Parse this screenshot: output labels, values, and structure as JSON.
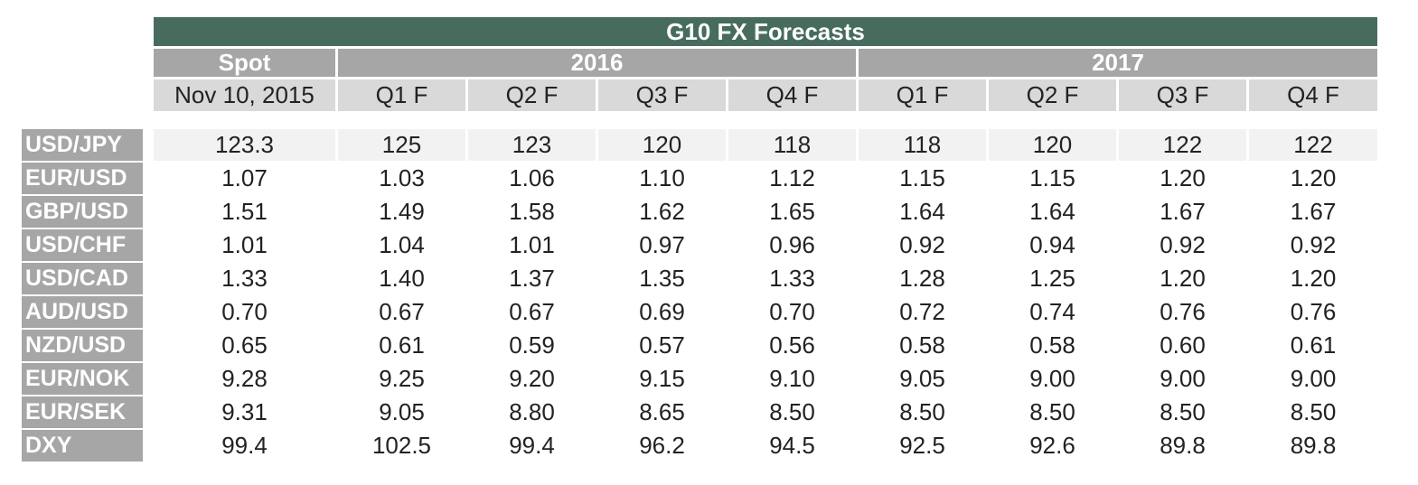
{
  "table": {
    "title": "G10 FX Forecasts",
    "spot_header": "Spot",
    "spot_date": "Nov 10, 2015",
    "year_headers": [
      "2016",
      "2017"
    ],
    "quarter_labels": [
      "Q1 F",
      "Q2 F",
      "Q3 F",
      "Q4 F",
      "Q1 F",
      "Q2 F",
      "Q3 F",
      "Q4 F"
    ],
    "rows": [
      {
        "pair": "USD/JPY",
        "values": [
          "123.3",
          "125",
          "123",
          "120",
          "118",
          "118",
          "120",
          "122",
          "122"
        ]
      },
      {
        "pair": "EUR/USD",
        "values": [
          "1.07",
          "1.03",
          "1.06",
          "1.10",
          "1.12",
          "1.15",
          "1.15",
          "1.20",
          "1.20"
        ]
      },
      {
        "pair": "GBP/USD",
        "values": [
          "1.51",
          "1.49",
          "1.58",
          "1.62",
          "1.65",
          "1.64",
          "1.64",
          "1.67",
          "1.67"
        ]
      },
      {
        "pair": "USD/CHF",
        "values": [
          "1.01",
          "1.04",
          "1.01",
          "0.97",
          "0.96",
          "0.92",
          "0.94",
          "0.92",
          "0.92"
        ]
      },
      {
        "pair": "USD/CAD",
        "values": [
          "1.33",
          "1.40",
          "1.37",
          "1.35",
          "1.33",
          "1.28",
          "1.25",
          "1.20",
          "1.20"
        ]
      },
      {
        "pair": "AUD/USD",
        "values": [
          "0.70",
          "0.67",
          "0.67",
          "0.69",
          "0.70",
          "0.72",
          "0.74",
          "0.76",
          "0.76"
        ]
      },
      {
        "pair": "NZD/USD",
        "values": [
          "0.65",
          "0.61",
          "0.59",
          "0.57",
          "0.56",
          "0.58",
          "0.58",
          "0.60",
          "0.61"
        ]
      },
      {
        "pair": "EUR/NOK",
        "values": [
          "9.28",
          "9.25",
          "9.20",
          "9.15",
          "9.10",
          "9.05",
          "9.00",
          "9.00",
          "9.00"
        ]
      },
      {
        "pair": "EUR/SEK",
        "values": [
          "9.31",
          "9.05",
          "8.80",
          "8.65",
          "8.50",
          "8.50",
          "8.50",
          "8.50",
          "8.50"
        ]
      },
      {
        "pair": "DXY",
        "values": [
          "99.4",
          "102.5",
          "99.4",
          "96.2",
          "94.5",
          "92.5",
          "92.6",
          "89.8",
          "89.8"
        ]
      }
    ]
  },
  "colors": {
    "title_bg": "#476c5e",
    "header_bg": "#a6a6a6",
    "subheader_bg": "#d9d9d9",
    "row_shade": "#f2f2f2",
    "text": "#222222"
  }
}
